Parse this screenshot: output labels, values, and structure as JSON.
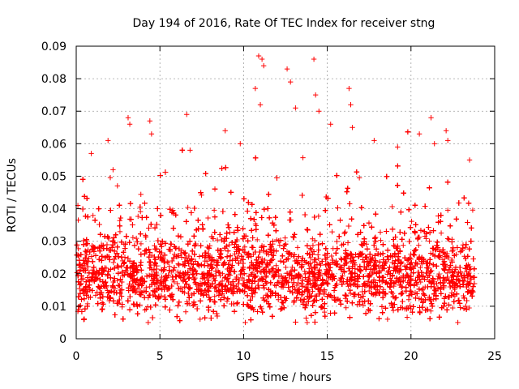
{
  "chart_data": {
    "type": "scatter",
    "title": "Day 194 of 2016, Rate Of TEC Index for receiver stng",
    "xlabel": "GPS time / hours",
    "ylabel": "ROTI / TECUs",
    "xlim": [
      0,
      25
    ],
    "ylim": [
      0,
      0.09
    ],
    "x_ticks": [
      0,
      5,
      10,
      15,
      20,
      25
    ],
    "x_tick_labels": [
      "0",
      "5",
      "10",
      "15",
      "20",
      "25"
    ],
    "y_ticks": [
      0,
      0.01,
      0.02,
      0.03,
      0.04,
      0.05,
      0.06,
      0.07,
      0.08,
      0.09
    ],
    "y_tick_labels": [
      "0",
      "0.01",
      "0.02",
      "0.03",
      "0.04",
      "0.05",
      "0.06",
      "0.07",
      "0.08",
      "0.09"
    ],
    "grid": true,
    "marker": "plus",
    "color": "#ff0000",
    "series": [
      {
        "name": "ROTI",
        "x_range": [
          0.0,
          23.8
        ],
        "typical_range": [
          0.008,
          0.035
        ],
        "notable_points": [
          {
            "x": 0.1,
            "y": 0.041
          },
          {
            "x": 0.9,
            "y": 0.057
          },
          {
            "x": 1.9,
            "y": 0.061
          },
          {
            "x": 2.2,
            "y": 0.052
          },
          {
            "x": 3.1,
            "y": 0.068
          },
          {
            "x": 3.2,
            "y": 0.066
          },
          {
            "x": 4.4,
            "y": 0.067
          },
          {
            "x": 4.5,
            "y": 0.063
          },
          {
            "x": 6.6,
            "y": 0.069
          },
          {
            "x": 6.8,
            "y": 0.058
          },
          {
            "x": 8.9,
            "y": 0.064
          },
          {
            "x": 9.8,
            "y": 0.06
          },
          {
            "x": 10.7,
            "y": 0.077
          },
          {
            "x": 10.9,
            "y": 0.087
          },
          {
            "x": 11.1,
            "y": 0.086
          },
          {
            "x": 11.2,
            "y": 0.084
          },
          {
            "x": 11.0,
            "y": 0.072
          },
          {
            "x": 12.6,
            "y": 0.083
          },
          {
            "x": 12.8,
            "y": 0.079
          },
          {
            "x": 13.1,
            "y": 0.071
          },
          {
            "x": 14.2,
            "y": 0.086
          },
          {
            "x": 14.3,
            "y": 0.075
          },
          {
            "x": 14.5,
            "y": 0.07
          },
          {
            "x": 15.2,
            "y": 0.066
          },
          {
            "x": 16.3,
            "y": 0.077
          },
          {
            "x": 16.4,
            "y": 0.072
          },
          {
            "x": 16.5,
            "y": 0.065
          },
          {
            "x": 17.8,
            "y": 0.061
          },
          {
            "x": 19.2,
            "y": 0.059
          },
          {
            "x": 20.5,
            "y": 0.063
          },
          {
            "x": 21.2,
            "y": 0.068
          },
          {
            "x": 21.4,
            "y": 0.06
          },
          {
            "x": 22.1,
            "y": 0.064
          },
          {
            "x": 22.2,
            "y": 0.061
          },
          {
            "x": 23.5,
            "y": 0.055
          },
          {
            "x": 4.3,
            "y": 0.005
          },
          {
            "x": 7.4,
            "y": 0.006
          },
          {
            "x": 10.1,
            "y": 0.005
          },
          {
            "x": 13.8,
            "y": 0.005
          },
          {
            "x": 18.6,
            "y": 0.006
          },
          {
            "x": 22.8,
            "y": 0.005
          }
        ]
      }
    ]
  }
}
